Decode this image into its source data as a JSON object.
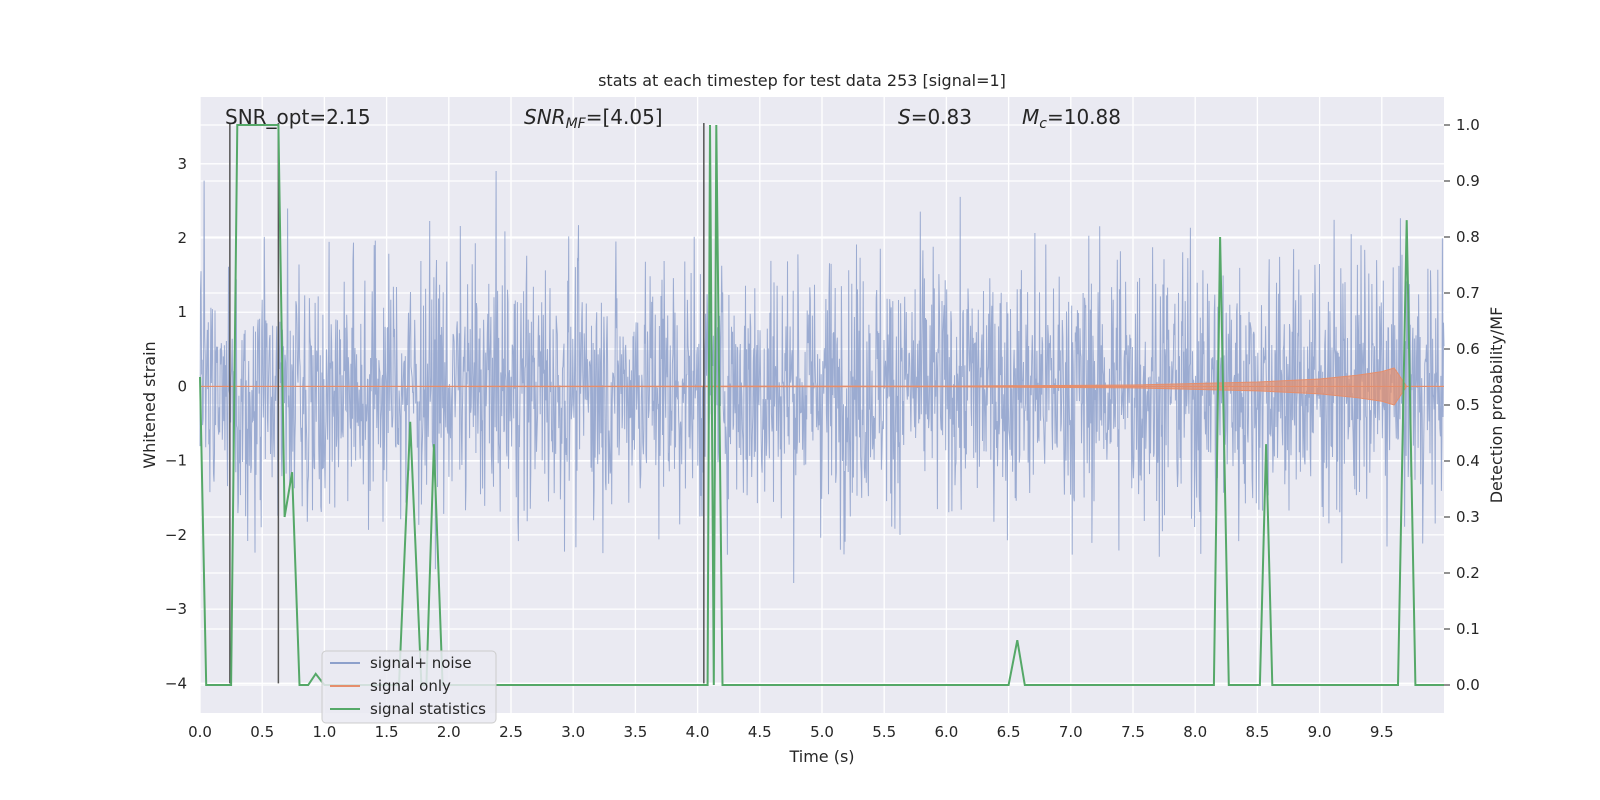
{
  "chart_data": {
    "type": "line",
    "title": "stats at each timestep for test data 253 [signal=1]",
    "xlabel": "Time (s)",
    "ylabel_left": "Whitened strain",
    "ylabel_right": "Detection probability/MF",
    "xlim": [
      0.0,
      10.0
    ],
    "ylim_left": [
      -4.4,
      3.9
    ],
    "ylim_right": [
      -0.05,
      1.05
    ],
    "xticks": [
      "0.0",
      "0.5",
      "1.0",
      "1.5",
      "2.0",
      "2.5",
      "3.0",
      "3.5",
      "4.0",
      "4.5",
      "5.0",
      "5.5",
      "6.0",
      "6.5",
      "7.0",
      "7.5",
      "8.0",
      "8.5",
      "9.0",
      "9.5"
    ],
    "yticks_left": [
      "−4",
      "−3",
      "−2",
      "−1",
      "0",
      "1",
      "2",
      "3"
    ],
    "yticks_right": [
      "0.0",
      "0.1",
      "0.2",
      "0.3",
      "0.4",
      "0.5",
      "0.6",
      "0.7",
      "0.8",
      "0.9",
      "1.0"
    ],
    "grid": true,
    "legend_placement": "lower-left",
    "annotations": {
      "snr_opt": "SNR_opt=2.15",
      "snr_mf_prefix": "SNR",
      "snr_mf_sub": "MF",
      "snr_mf_value": "=[4.05]",
      "s_prefix": "S",
      "s_value": "=0.83",
      "mc_prefix": "M",
      "mc_sub": "c",
      "mc_value": "=10.88"
    },
    "series": [
      {
        "name": "signal+ noise",
        "axis": "left",
        "color": "#8da0cb",
        "description_values": "whitened strain noise, roughly in [-3.5, 3.5]",
        "typical_range": [
          -3.5,
          3.5
        ]
      },
      {
        "name": "signal only",
        "axis": "left",
        "color": "#e58e6c",
        "envelope_points": [
          [
            0.0,
            0.0
          ],
          [
            6.0,
            0.005
          ],
          [
            7.5,
            0.02
          ],
          [
            8.5,
            0.06
          ],
          [
            9.0,
            0.1
          ],
          [
            9.3,
            0.15
          ],
          [
            9.5,
            0.2
          ],
          [
            9.6,
            0.25
          ],
          [
            9.7,
            0.0
          ],
          [
            10.0,
            0.0
          ]
        ]
      },
      {
        "name": "signal statistics",
        "axis": "right",
        "color": "#55a868",
        "points": [
          [
            0.0,
            0.55
          ],
          [
            0.05,
            0.0
          ],
          [
            0.25,
            0.0
          ],
          [
            0.3,
            1.0
          ],
          [
            0.63,
            1.0
          ],
          [
            0.68,
            0.3
          ],
          [
            0.74,
            0.38
          ],
          [
            0.8,
            0.0
          ],
          [
            0.87,
            0.0
          ],
          [
            0.93,
            0.02
          ],
          [
            1.0,
            0.0
          ],
          [
            1.6,
            0.0
          ],
          [
            1.69,
            0.47
          ],
          [
            1.78,
            0.0
          ],
          [
            1.82,
            0.0
          ],
          [
            1.88,
            0.43
          ],
          [
            1.95,
            0.0
          ],
          [
            4.08,
            0.0
          ],
          [
            4.1,
            1.0
          ],
          [
            4.13,
            0.0
          ],
          [
            4.15,
            1.0
          ],
          [
            4.2,
            0.0
          ],
          [
            6.5,
            0.0
          ],
          [
            6.57,
            0.08
          ],
          [
            6.63,
            0.0
          ],
          [
            8.15,
            0.0
          ],
          [
            8.2,
            0.8
          ],
          [
            8.27,
            0.0
          ],
          [
            8.52,
            0.0
          ],
          [
            8.57,
            0.43
          ],
          [
            8.62,
            0.0
          ],
          [
            9.63,
            0.0
          ],
          [
            9.7,
            0.83
          ],
          [
            9.77,
            0.0
          ],
          [
            10.0,
            0.0
          ]
        ]
      },
      {
        "name": "",
        "axis": "left",
        "color": "#555555",
        "vertical_markers_x": [
          0.24,
          0.63,
          4.05
        ]
      }
    ]
  }
}
